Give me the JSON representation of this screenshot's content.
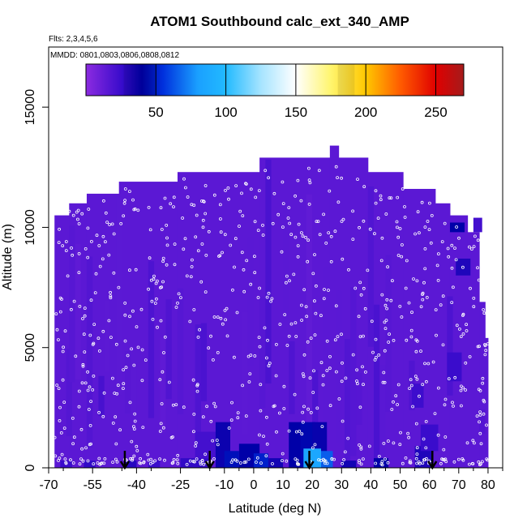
{
  "chart_data": {
    "type": "heatmap",
    "title": "ATOM1 Southbound calc_ext_340_AMP",
    "subtitle_flights": "Flts: 2,3,4,5,6",
    "subtitle_dates": "MMDD: 0801,0803,0806,0808,0812",
    "xlabel": "Latitude (deg N)",
    "ylabel": "Altitude (m)",
    "xlim": [
      -70,
      85
    ],
    "ylim": [
      0,
      17500
    ],
    "x_ticks_major": [
      -70,
      -55,
      -40,
      -25,
      -10,
      0,
      10,
      20,
      30,
      40,
      50,
      60,
      70,
      80
    ],
    "x_tick_labels": [
      "-70",
      "-55",
      "-40",
      "-25",
      "-10",
      "0",
      "10",
      "20",
      "30",
      "40",
      "50",
      "60",
      "70",
      "80"
    ],
    "y_ticks": [
      0,
      5000,
      10000,
      15000
    ],
    "y_tick_labels": [
      "0",
      "5000",
      "10000",
      "15000"
    ],
    "colorbar": {
      "range": [
        0,
        270
      ],
      "ticks": [
        50,
        100,
        150,
        200,
        250
      ],
      "tick_labels": [
        "50",
        "100",
        "150",
        "200",
        "250"
      ],
      "stops": [
        {
          "value": 0,
          "color": "#8c2be0"
        },
        {
          "value": 25,
          "color": "#3a0ccc"
        },
        {
          "value": 40,
          "color": "#0000a8"
        },
        {
          "value": 55,
          "color": "#0030dd"
        },
        {
          "value": 80,
          "color": "#1aa0ff"
        },
        {
          "value": 100,
          "color": "#22baff"
        },
        {
          "value": 125,
          "color": "#a6e4ff"
        },
        {
          "value": 150,
          "color": "#ffffff"
        },
        {
          "value": 175,
          "color": "#fff56e"
        },
        {
          "value": 200,
          "color": "#ffc800"
        },
        {
          "value": 225,
          "color": "#ff5a00"
        },
        {
          "value": 250,
          "color": "#e00000"
        },
        {
          "value": 270,
          "color": "#a51b1b"
        }
      ]
    },
    "background_value": 15,
    "envelope": [
      {
        "lat_range": [
          -68,
          -63
        ],
        "alt_top": 10500
      },
      {
        "lat_range": [
          -63,
          -57
        ],
        "alt_top": 11000
      },
      {
        "lat_range": [
          -57,
          -46
        ],
        "alt_top": 11400
      },
      {
        "lat_range": [
          -46,
          -26
        ],
        "alt_top": 11900
      },
      {
        "lat_range": [
          -26,
          2
        ],
        "alt_top": 12300
      },
      {
        "lat_range": [
          2,
          26
        ],
        "alt_top": 12900
      },
      {
        "lat_range": [
          26,
          29
        ],
        "alt_top": 13400
      },
      {
        "lat_range": [
          29,
          39
        ],
        "alt_top": 12900
      },
      {
        "lat_range": [
          39,
          51
        ],
        "alt_top": 12300
      },
      {
        "lat_range": [
          51,
          62
        ],
        "alt_top": 11600
      },
      {
        "lat_range": [
          62,
          67
        ],
        "alt_top": 11000
      },
      {
        "lat_range": [
          67,
          73
        ],
        "alt_top": 10500
      },
      {
        "lat_range": [
          73,
          77
        ],
        "alt_top": 9800
      },
      {
        "lat_range": [
          77,
          79
        ],
        "alt_top": 6900
      },
      {
        "lat_range": [
          79,
          80
        ],
        "alt_top": 5400
      }
    ],
    "cells": [
      {
        "lat": [
          -66,
          -62
        ],
        "alt": [
          0,
          300
        ],
        "value": 25
      },
      {
        "lat": [
          -58,
          -54
        ],
        "alt": [
          0,
          300
        ],
        "value": 27
      },
      {
        "lat": [
          -44,
          -40
        ],
        "alt": [
          0,
          300
        ],
        "value": 30
      },
      {
        "lat": [
          -36,
          -32
        ],
        "alt": [
          0,
          300
        ],
        "value": 25
      },
      {
        "lat": [
          -25,
          -15
        ],
        "alt": [
          0,
          400
        ],
        "value": 27
      },
      {
        "lat": [
          -20,
          -13
        ],
        "alt": [
          400,
          1500
        ],
        "value": 22
      },
      {
        "lat": [
          -13,
          -8
        ],
        "alt": [
          0,
          1900
        ],
        "value": 37
      },
      {
        "lat": [
          -10,
          -5
        ],
        "alt": [
          0,
          700
        ],
        "value": 45
      },
      {
        "lat": [
          -5,
          2
        ],
        "alt": [
          0,
          1000
        ],
        "value": 40
      },
      {
        "lat": [
          0,
          5
        ],
        "alt": [
          0,
          600
        ],
        "value": 50
      },
      {
        "lat": [
          5,
          10
        ],
        "alt": [
          0,
          400
        ],
        "value": 35
      },
      {
        "lat": [
          12,
          17
        ],
        "alt": [
          0,
          1900
        ],
        "value": 40
      },
      {
        "lat": [
          16,
          21
        ],
        "alt": [
          0,
          1900
        ],
        "value": 42
      },
      {
        "lat": [
          20,
          25
        ],
        "alt": [
          0,
          1900
        ],
        "value": 38
      },
      {
        "lat": [
          17,
          23
        ],
        "alt": [
          0,
          800
        ],
        "value": 85
      },
      {
        "lat": [
          23,
          27
        ],
        "alt": [
          0,
          700
        ],
        "value": 65
      },
      {
        "lat": [
          30,
          35
        ],
        "alt": [
          0,
          300
        ],
        "value": 35
      },
      {
        "lat": [
          41,
          46
        ],
        "alt": [
          0,
          400
        ],
        "value": 40
      },
      {
        "lat": [
          55,
          61
        ],
        "alt": [
          0,
          900
        ],
        "value": 32
      },
      {
        "lat": [
          57,
          63
        ],
        "alt": [
          700,
          1800
        ],
        "value": 25
      },
      {
        "lat": [
          54,
          58
        ],
        "alt": [
          2500,
          3500
        ],
        "value": 24
      },
      {
        "lat": [
          67,
          72
        ],
        "alt": [
          9800,
          10200
        ],
        "value": 40
      },
      {
        "lat": [
          69,
          74
        ],
        "alt": [
          8000,
          8700
        ],
        "value": 32
      },
      {
        "lat": [
          66,
          71
        ],
        "alt": [
          3600,
          4800
        ],
        "value": 25
      },
      {
        "lat": [
          75,
          78
        ],
        "alt": [
          9800,
          10400
        ],
        "value": 22
      }
    ],
    "flight_track_markers_lat": [
      -44,
      -15,
      19,
      61
    ]
  }
}
